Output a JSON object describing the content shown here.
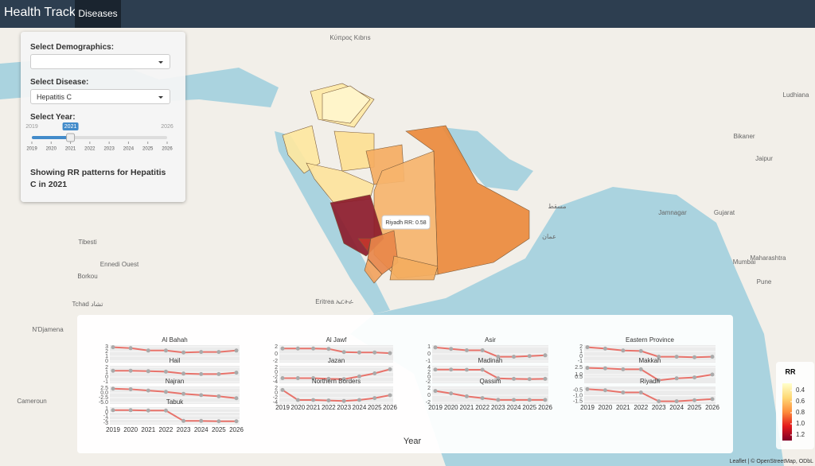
{
  "navbar": {
    "brand": "Health Tracker",
    "tab": "Diseases"
  },
  "sidebar": {
    "demographics_label": "Select Demographics:",
    "demographics_value": "",
    "disease_label": "Select Disease:",
    "disease_value": "Hepatitis C",
    "year_label": "Select Year:",
    "slider": {
      "min": 2019,
      "max": 2026,
      "value": 2021,
      "ticks": [
        2019,
        2020,
        2021,
        2022,
        2023,
        2024,
        2025,
        2026
      ]
    },
    "summary": "Showing RR patterns for Hepatitis C in 2021"
  },
  "map": {
    "region_colors": [
      "#fee9a6",
      "#fff5cc",
      "#fee7a0",
      "#fddf92",
      "#f5ad62",
      "#eb8a3c",
      "#f6b46c",
      "#fde39c",
      "#8c1b2b",
      "#c2362d",
      "#e8874a",
      "#f2a35e",
      "#f3ad60"
    ],
    "tooltip": "Riyadh RR: 0.58",
    "labels": [
      "Κύπρος Kıbrıs",
      "Tibesti",
      "Ennedi Ouest",
      "Borkou",
      "Tchad تشاد",
      "N'Djamena",
      "Cameroun",
      "Eritrea ኤርትራ",
      "مسقط",
      "عمان",
      "Jamnagar",
      "Mumbai",
      "Gujarat",
      "Maharashtra",
      "Ludhiana",
      "Bikaner",
      "Jaipur",
      "Pune"
    ],
    "legend": {
      "title": "RR",
      "colors": [
        "#ffffcc",
        "#fed976",
        "#fd8d3c",
        "#e31a1c",
        "#800026"
      ],
      "ticks": [
        0.4,
        0.6,
        0.8,
        {
          "value": 1,
          "label": "1.0"
        },
        1.2
      ]
    },
    "attribution": "Leaflet | © OpenStreetMap, ODbL"
  },
  "chart_data": {
    "type": "line",
    "x": [
      2019,
      2020,
      2021,
      2022,
      2023,
      2024,
      2025,
      2026
    ],
    "x_label": "Year",
    "color": "#e8736b",
    "panels": [
      {
        "name": "Al Bahah",
        "ylim": [
          0,
          3
        ],
        "yticks": [
          0,
          1,
          2,
          3
        ],
        "values": [
          2.9,
          2.7,
          2.2,
          2.2,
          1.8,
          1.9,
          1.9,
          2.2
        ]
      },
      {
        "name": "Hail",
        "ylim": [
          -1,
          2
        ],
        "yticks": [
          -1,
          0,
          1,
          2
        ],
        "values": [
          1.3,
          1.3,
          1.2,
          1.1,
          0.7,
          0.6,
          0.6,
          0.9
        ]
      },
      {
        "name": "Najran",
        "ylim": [
          -5,
          2.5
        ],
        "yticks": [
          {
            "value": -5,
            "label": "-5.0"
          },
          {
            "value": -2.5,
            "label": "-2.5"
          },
          {
            "value": 0,
            "label": "0.0"
          },
          2.5
        ],
        "values": [
          2.2,
          1.9,
          1.2,
          0.5,
          -0.5,
          -1.2,
          -1.8,
          -2.8
        ]
      },
      {
        "name": "Tabuk",
        "ylim": [
          -3,
          1
        ],
        "yticks": [
          -3,
          -2,
          -1,
          0,
          1
        ],
        "values": [
          0.6,
          0.6,
          0.5,
          0.5,
          -2.4,
          -2.4,
          -2.5,
          -2.5
        ]
      },
      {
        "name": "Al Jawf",
        "ylim": [
          -2,
          2
        ],
        "yticks": [
          -2,
          0,
          2
        ],
        "values": [
          1.5,
          1.5,
          1.5,
          1.4,
          0.5,
          0.4,
          0.4,
          0.2
        ]
      },
      {
        "name": "Jazan",
        "ylim": [
          -4,
          2
        ],
        "yticks": [
          -4,
          -2,
          0,
          2
        ],
        "values": [
          -2.5,
          -2.5,
          -2.5,
          -2.8,
          -2.9,
          -1.8,
          -0.5,
          1.2
        ]
      },
      {
        "name": "Northern Borders",
        "ylim": [
          -4,
          2
        ],
        "yticks": [
          -4,
          -2,
          0,
          2
        ],
        "values": [
          1.2,
          -3,
          -3,
          -3.2,
          -3.4,
          -3,
          -2.2,
          -1
        ]
      },
      {
        "name": "Asir",
        "ylim": [
          -1,
          1
        ],
        "yticks": [
          -1,
          0,
          1
        ],
        "values": [
          0.9,
          0.7,
          0.5,
          0.5,
          -0.4,
          -0.4,
          -0.3,
          -0.2
        ]
      },
      {
        "name": "Madinah",
        "ylim": [
          -2,
          4
        ],
        "yticks": [
          -2,
          0,
          2,
          4
        ],
        "values": [
          3.1,
          3.1,
          3,
          3,
          -0.6,
          -0.8,
          -0.9,
          -0.8
        ]
      },
      {
        "name": "Qassim",
        "ylim": [
          -2,
          2
        ],
        "yticks": [
          -2,
          0,
          2
        ],
        "values": [
          1.2,
          0.5,
          -0.3,
          -0.8,
          -1.3,
          -1.3,
          -1.3,
          -1.3
        ]
      },
      {
        "name": "Eastern Province",
        "ylim": [
          -1,
          2
        ],
        "yticks": [
          -1,
          0,
          1,
          2
        ],
        "values": [
          1.9,
          1.6,
          1.2,
          1.1,
          -0.1,
          -0.1,
          -0.2,
          -0.1
        ]
      },
      {
        "name": "Makkah",
        "ylim": [
          -0.5,
          2.5
        ],
        "yticks": [
          0.5,
          {
            "value": 1,
            "label": "1.0"
          },
          2.5
        ],
        "values": [
          2.4,
          2.3,
          2.1,
          2.1,
          -0.2,
          0.2,
          0.4,
          1
        ]
      },
      {
        "name": "Riyadh",
        "ylim": [
          -1.6,
          -0.3
        ],
        "yticks": [
          {
            "value": -1.5,
            "label": "-1.5"
          },
          {
            "value": -1,
            "label": "-1.0"
          },
          {
            "value": -0.5,
            "label": "-0.5"
          }
        ],
        "values": [
          -0.4,
          -0.5,
          -0.7,
          -0.7,
          -1.5,
          -1.5,
          -1.4,
          -1.3
        ]
      }
    ]
  }
}
